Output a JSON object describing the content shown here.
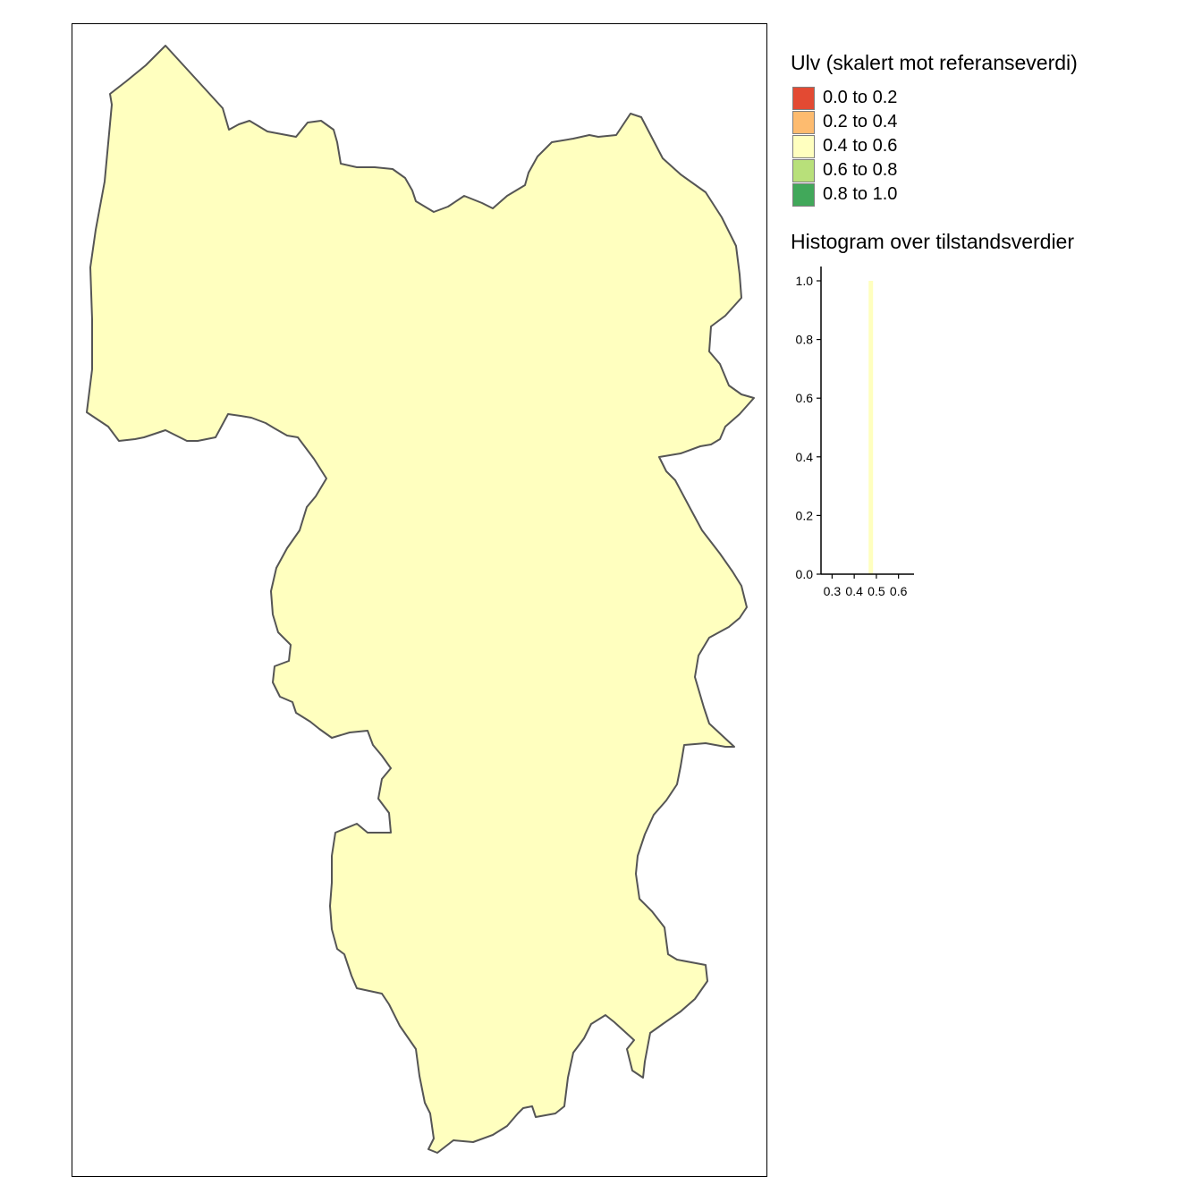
{
  "legend": {
    "title": "Ulv (skalert mot referanseverdi)",
    "classes": [
      {
        "label": "0.0 to 0.2",
        "color": "#e34a33"
      },
      {
        "label": "0.2 to 0.4",
        "color": "#fdbb6f"
      },
      {
        "label": "0.4 to 0.6",
        "color": "#ffffbf"
      },
      {
        "label": "0.6 to 0.8",
        "color": "#b8e07a"
      },
      {
        "label": "0.8 to 1.0",
        "color": "#41a85a"
      }
    ]
  },
  "map": {
    "region_fill": "#ffffbf",
    "region_stroke": "#555555"
  },
  "chart_data": {
    "type": "bar",
    "title": "Histogram over tilstandsverdier",
    "x_ticks": [
      "0.3",
      "0.4",
      "0.5",
      "0.6"
    ],
    "y_ticks": [
      "0.0",
      "0.2",
      "0.4",
      "0.6",
      "0.8",
      "1.0"
    ],
    "xlim": [
      0.25,
      0.67
    ],
    "ylim": [
      0,
      1.0
    ],
    "bars": [
      {
        "x0": 0.465,
        "x1": 0.485,
        "value": 1.0,
        "color": "#ffffbf"
      }
    ]
  }
}
